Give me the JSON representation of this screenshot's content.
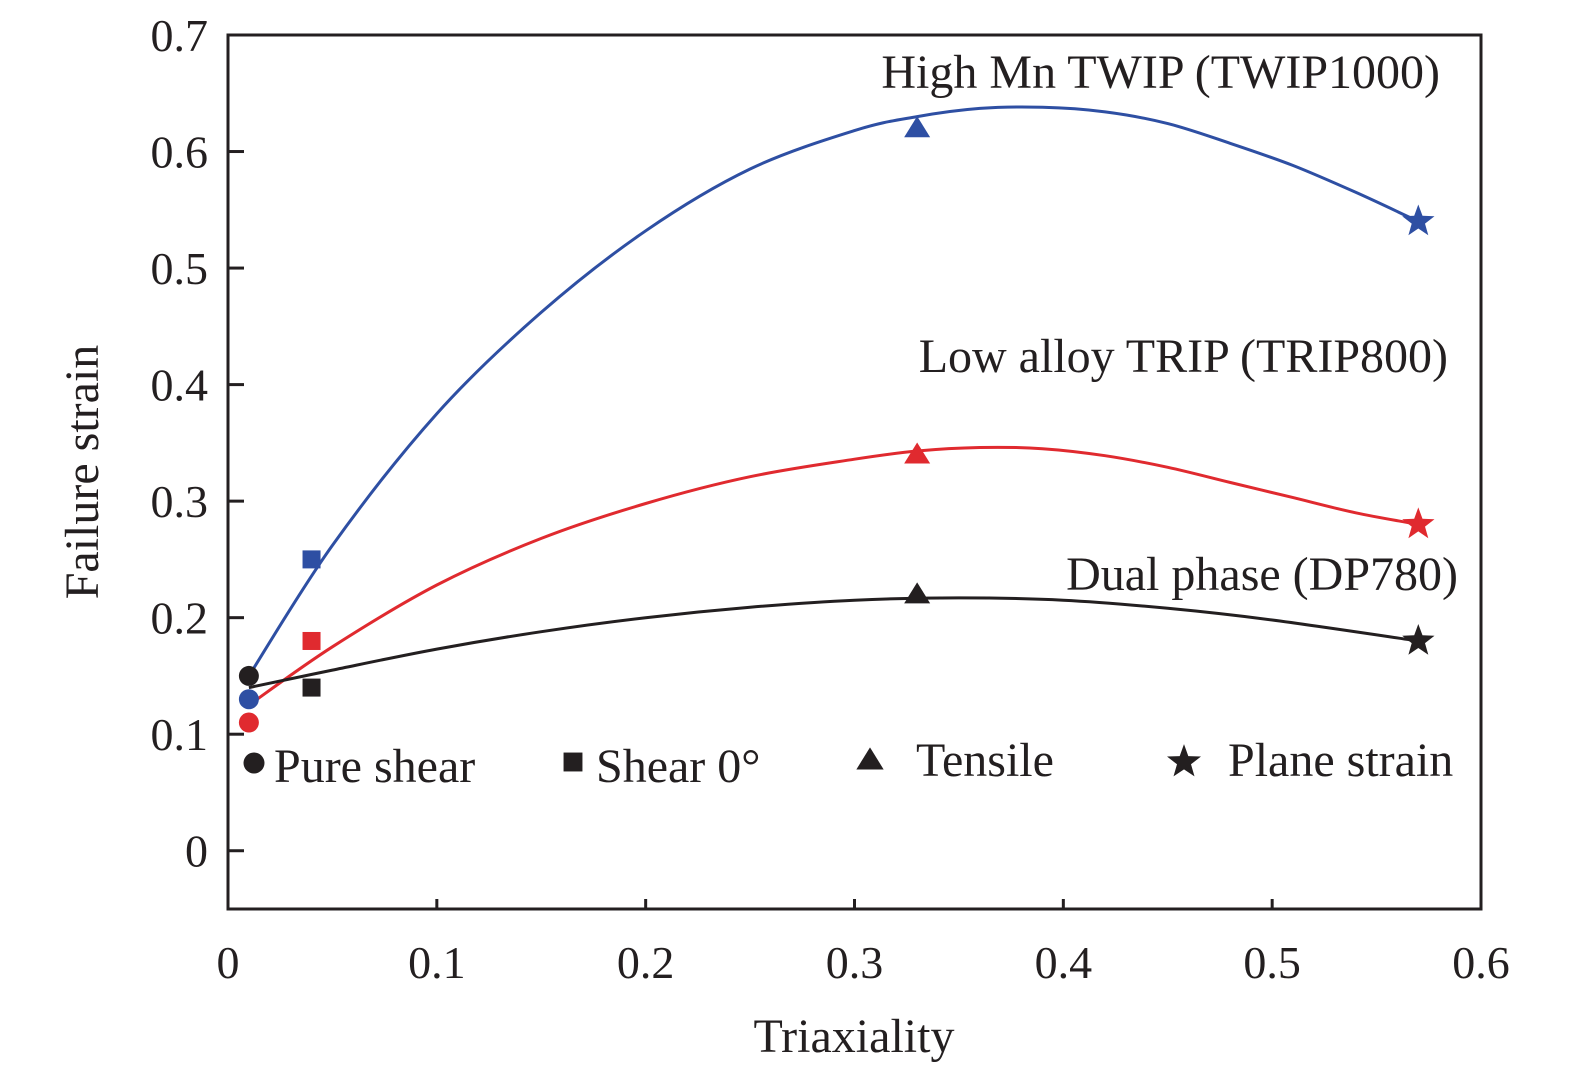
{
  "chart_data": {
    "type": "scatter",
    "xlabel": "Triaxiality",
    "ylabel": "Failure strain",
    "xlim": [
      0,
      0.6
    ],
    "ylim": [
      -0.05,
      0.7
    ],
    "xticks": [
      0,
      0.1,
      0.2,
      0.3,
      0.4,
      0.5,
      0.6
    ],
    "xtick_labels": [
      "0",
      "0.1",
      "0.2",
      "0.3",
      "0.4",
      "0.5",
      "0.6"
    ],
    "yticks": [
      0,
      0.1,
      0.2,
      0.3,
      0.4,
      0.5,
      0.6,
      0.7
    ],
    "ytick_labels": [
      "0",
      "0.1",
      "0.2",
      "0.3",
      "0.4",
      "0.5",
      "0.6",
      "0.7"
    ],
    "grid": false,
    "legend": {
      "position": "bottom-inside",
      "entries": [
        {
          "marker": "circle",
          "label": "Pure shear"
        },
        {
          "marker": "square",
          "label": "Shear 0°"
        },
        {
          "marker": "triangle",
          "label": "Tensile"
        },
        {
          "marker": "star",
          "label": "Plane strain"
        }
      ]
    },
    "series": [
      {
        "name": "High Mn TWIP (TWIP1000)",
        "color": "#2e4fa3",
        "points": [
          {
            "test": "Pure shear",
            "marker": "circle",
            "x": 0.01,
            "y": 0.13
          },
          {
            "test": "Shear 0°",
            "marker": "square",
            "x": 0.04,
            "y": 0.25
          },
          {
            "test": "Tensile",
            "marker": "triangle",
            "x": 0.33,
            "y": 0.62
          },
          {
            "test": "Plane strain",
            "marker": "star",
            "x": 0.57,
            "y": 0.54
          }
        ],
        "curve": {
          "x": [
            0.01,
            0.05,
            0.1,
            0.15,
            0.2,
            0.25,
            0.3,
            0.33,
            0.36,
            0.39,
            0.42,
            0.45,
            0.48,
            0.51,
            0.54,
            0.57
          ],
          "y": [
            0.15,
            0.262,
            0.375,
            0.462,
            0.532,
            0.585,
            0.618,
            0.63,
            0.637,
            0.638,
            0.634,
            0.624,
            0.607,
            0.588,
            0.565,
            0.54
          ]
        }
      },
      {
        "name": "Low alloy TRIP (TRIP800)",
        "color": "#e02a2f",
        "points": [
          {
            "test": "Pure shear",
            "marker": "circle",
            "x": 0.01,
            "y": 0.11
          },
          {
            "test": "Shear 0°",
            "marker": "square",
            "x": 0.04,
            "y": 0.18
          },
          {
            "test": "Tensile",
            "marker": "triangle",
            "x": 0.33,
            "y": 0.34
          },
          {
            "test": "Plane strain",
            "marker": "star",
            "x": 0.57,
            "y": 0.28
          }
        ],
        "curve": {
          "x": [
            0.01,
            0.05,
            0.1,
            0.15,
            0.2,
            0.25,
            0.3,
            0.33,
            0.36,
            0.39,
            0.42,
            0.45,
            0.48,
            0.51,
            0.54,
            0.57
          ],
          "y": [
            0.125,
            0.175,
            0.228,
            0.268,
            0.298,
            0.321,
            0.336,
            0.343,
            0.346,
            0.345,
            0.339,
            0.329,
            0.316,
            0.303,
            0.29,
            0.28
          ]
        }
      },
      {
        "name": "Dual phase (DP780)",
        "color": "#231f20",
        "points": [
          {
            "test": "Pure shear",
            "marker": "circle",
            "x": 0.01,
            "y": 0.15
          },
          {
            "test": "Shear 0°",
            "marker": "square",
            "x": 0.04,
            "y": 0.14
          },
          {
            "test": "Tensile",
            "marker": "triangle",
            "x": 0.33,
            "y": 0.22
          },
          {
            "test": "Plane strain",
            "marker": "star",
            "x": 0.57,
            "y": 0.18
          }
        ],
        "curve": {
          "x": [
            0.01,
            0.05,
            0.1,
            0.15,
            0.2,
            0.25,
            0.3,
            0.35,
            0.4,
            0.45,
            0.5,
            0.57
          ],
          "y": [
            0.14,
            0.155,
            0.173,
            0.188,
            0.2,
            0.209,
            0.215,
            0.217,
            0.215,
            0.208,
            0.198,
            0.18
          ]
        }
      }
    ]
  }
}
